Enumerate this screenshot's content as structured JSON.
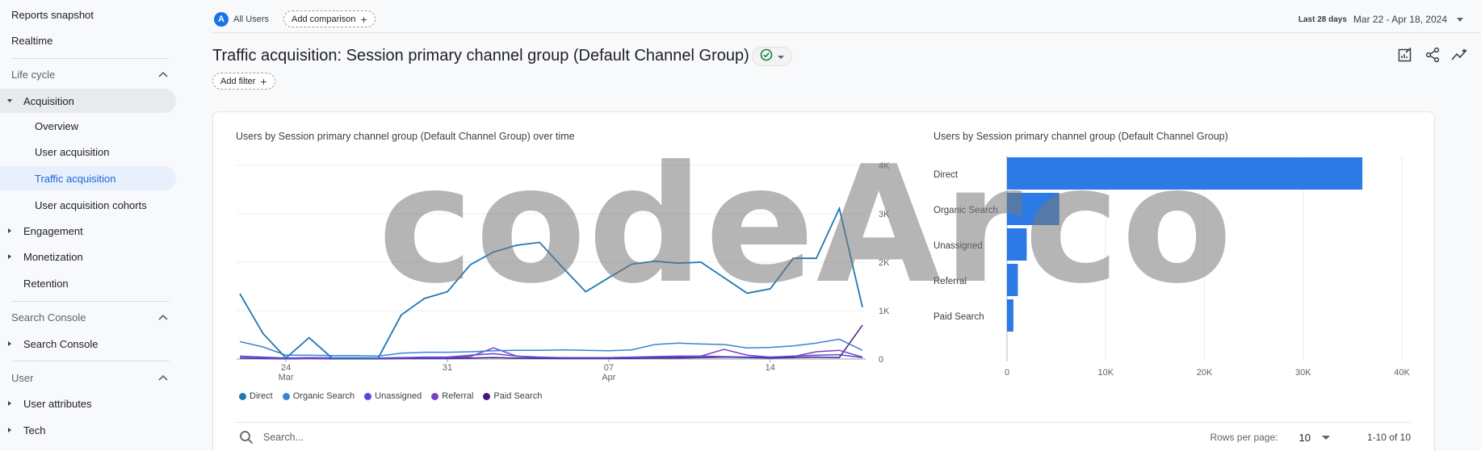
{
  "sidebar": {
    "top_items": [
      "Reports snapshot",
      "Realtime"
    ],
    "lifecycle": {
      "label": "Life cycle",
      "acquisition": "Acquisition",
      "acq_children": [
        "Overview",
        "User acquisition",
        "Traffic acquisition",
        "User acquisition cohorts"
      ],
      "others": [
        "Engagement",
        "Monetization",
        "Retention"
      ]
    },
    "search_console": {
      "label": "Search Console",
      "item": "Search Console"
    },
    "user": {
      "label": "User",
      "items": [
        "User attributes",
        "Tech"
      ]
    }
  },
  "topbar": {
    "avatar_letter": "A",
    "segment_label": "All Users",
    "add_comparison": "Add comparison",
    "date_prefix": "Last 28 days",
    "date_range": "Mar 22 - Apr 18, 2024"
  },
  "page": {
    "title": "Traffic acquisition: Session primary channel group (Default Channel Group)",
    "add_filter": "Add filter"
  },
  "line_chart": {
    "title": "Users by Session primary channel group (Default Channel Group) over time",
    "y_ticks": [
      "4K",
      "3K",
      "2K",
      "1K",
      "0"
    ],
    "x_ticks": [
      {
        "day": "24",
        "month": "Mar"
      },
      {
        "day": "31",
        "month": ""
      },
      {
        "day": "07",
        "month": "Apr"
      },
      {
        "day": "14",
        "month": ""
      }
    ]
  },
  "bar_chart": {
    "title": "Users by Session primary channel group (Default Channel Group)",
    "x_ticks": [
      "0",
      "10K",
      "20K",
      "30K",
      "40K"
    ]
  },
  "legend": [
    "Direct",
    "Organic Search",
    "Unassigned",
    "Referral",
    "Paid Search"
  ],
  "colors": {
    "accent": "#1a73e8",
    "direct": "#1f77b4",
    "organic": "#3b82d6",
    "unassigned": "#4d4dd9",
    "referral": "#7b3fc6",
    "paid": "#4a1480",
    "bar": "#2c7ae5"
  },
  "table_controls": {
    "search_placeholder": "Search...",
    "rows_per_page_label": "Rows per page:",
    "rows_per_page_value": "10",
    "pagination": "1-10 of 10"
  },
  "watermark": "codeArco",
  "chart_data": [
    {
      "type": "line",
      "title": "Users by Session primary channel group (Default Channel Group) over time",
      "xlabel": "",
      "ylabel": "",
      "ylim": [
        0,
        4000
      ],
      "x": [
        "Mar 22",
        "Mar 23",
        "Mar 24",
        "Mar 25",
        "Mar 26",
        "Mar 27",
        "Mar 28",
        "Mar 29",
        "Mar 30",
        "Mar 31",
        "Apr 1",
        "Apr 2",
        "Apr 3",
        "Apr 4",
        "Apr 5",
        "Apr 6",
        "Apr 7",
        "Apr 8",
        "Apr 9",
        "Apr 10",
        "Apr 11",
        "Apr 12",
        "Apr 13",
        "Apr 14",
        "Apr 15",
        "Apr 16",
        "Apr 17",
        "Apr 18"
      ],
      "series": [
        {
          "name": "Direct",
          "values": [
            1350,
            530,
            20,
            440,
            20,
            20,
            20,
            910,
            1250,
            1390,
            1950,
            2210,
            2350,
            2410,
            1890,
            1390,
            1680,
            1960,
            2020,
            1980,
            2000,
            1680,
            1360,
            1450,
            2080,
            2080,
            3110,
            1070
          ]
        },
        {
          "name": "Organic Search",
          "values": [
            360,
            250,
            80,
            80,
            70,
            70,
            60,
            120,
            140,
            140,
            150,
            170,
            180,
            180,
            190,
            180,
            170,
            190,
            300,
            330,
            310,
            300,
            230,
            240,
            270,
            330,
            410,
            180
          ]
        },
        {
          "name": "Unassigned",
          "values": [
            60,
            40,
            20,
            30,
            25,
            25,
            20,
            30,
            40,
            40,
            80,
            110,
            60,
            40,
            30,
            30,
            30,
            40,
            50,
            60,
            60,
            50,
            40,
            40,
            60,
            80,
            90,
            30
          ]
        },
        {
          "name": "Referral",
          "values": [
            30,
            20,
            10,
            15,
            10,
            10,
            10,
            20,
            20,
            20,
            50,
            230,
            60,
            30,
            20,
            20,
            20,
            30,
            40,
            40,
            60,
            200,
            80,
            40,
            50,
            150,
            180,
            40
          ]
        },
        {
          "name": "Paid Search",
          "values": [
            20,
            10,
            5,
            10,
            5,
            5,
            5,
            10,
            10,
            10,
            20,
            30,
            20,
            15,
            10,
            10,
            10,
            15,
            20,
            20,
            30,
            40,
            30,
            20,
            30,
            40,
            30,
            700
          ]
        }
      ]
    },
    {
      "type": "bar",
      "title": "Users by Session primary channel group (Default Channel Group)",
      "xlabel": "",
      "ylabel": "",
      "orientation": "horizontal",
      "xlim": [
        0,
        40000
      ],
      "categories": [
        "Direct",
        "Organic Search",
        "Unassigned",
        "Referral",
        "Paid Search"
      ],
      "values": [
        36000,
        5300,
        2000,
        1100,
        650
      ]
    }
  ]
}
